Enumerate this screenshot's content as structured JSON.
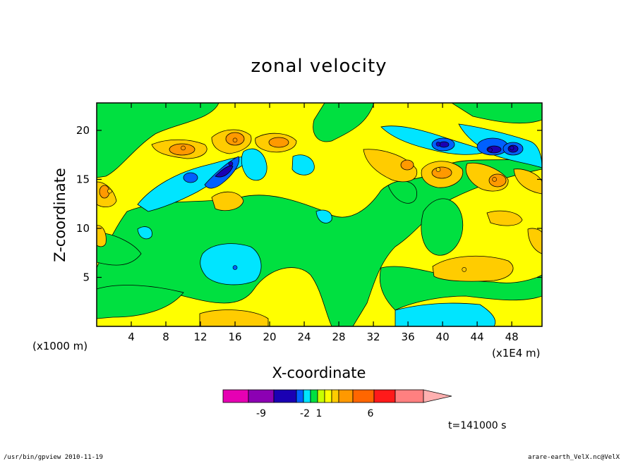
{
  "footer": {
    "left": "/usr/bin/gpview  2010-11-19",
    "right": "arare-earth_VelX.nc@VelX"
  },
  "time_label": "t=141000 s",
  "x_multiplier_label": "(x1000 m)",
  "x_unit_label": "(x1E4 m)",
  "chart_data": {
    "type": "heatmap",
    "title": "zonal velocity",
    "xlabel": "X-coordinate",
    "ylabel": "Z-coordinate",
    "xlim": [
      0,
      51.5
    ],
    "ylim": [
      0,
      22.8
    ],
    "x_ticks": [
      "4",
      "8",
      "12",
      "16",
      "20",
      "24",
      "28",
      "32",
      "36",
      "40",
      "44",
      "48"
    ],
    "y_ticks": [
      "5",
      "10",
      "15",
      "20"
    ],
    "colorbar": {
      "colors": [
        "#e600b3",
        "#8c00b3",
        "#1a00b3",
        "#0060ff",
        "#00e5ff",
        "#00e040",
        "#c8ff00",
        "#ffff00",
        "#ffcc00",
        "#ff9900",
        "#ff6600",
        "#ff1a1a",
        "#ff8080",
        "#ffb0b0"
      ],
      "tick_labels": [
        "-9",
        "-2",
        "1",
        "6"
      ]
    },
    "features": [
      {
        "label": "negative core",
        "x": 15.5,
        "z": 16.6,
        "value": -5
      },
      {
        "label": "negative core",
        "x": 39.5,
        "z": 18.6,
        "value": -5
      },
      {
        "label": "negative core",
        "x": 45.5,
        "z": 18.0,
        "value": -5
      },
      {
        "label": "negative core",
        "x": 48.0,
        "z": 18.2,
        "value": -5
      },
      {
        "label": "negative core",
        "x": 16.0,
        "z": 6.0,
        "value": -2
      },
      {
        "label": "positive core",
        "x": 16.0,
        "z": 19.0,
        "value": 4
      },
      {
        "label": "positive core",
        "x": 10.0,
        "z": 18.2,
        "value": 4
      },
      {
        "label": "positive core",
        "x": 46.0,
        "z": 15.0,
        "value": 4
      },
      {
        "label": "positive core",
        "x": 39.5,
        "z": 16.0,
        "value": 3
      },
      {
        "label": "positive core",
        "x": 1.5,
        "z": 13.8,
        "value": 3
      },
      {
        "label": "positive core",
        "x": 42.5,
        "z": 5.8,
        "value": 2
      }
    ]
  }
}
